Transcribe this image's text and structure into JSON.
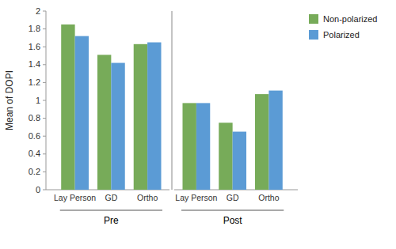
{
  "chart_data": {
    "type": "bar",
    "categories": [
      "Lay Person",
      "GD",
      "Ortho",
      "Lay Person",
      "GD",
      "Ortho"
    ],
    "series": [
      {
        "name": "Non-polarized",
        "color": "#77ab59",
        "values": [
          1.85,
          1.51,
          1.63,
          0.97,
          0.75,
          1.07
        ]
      },
      {
        "name": "Polarized",
        "color": "#5b9bd5",
        "values": [
          1.72,
          1.42,
          1.65,
          0.97,
          0.65,
          1.11
        ]
      }
    ],
    "ylabel": "Mean of DOPI",
    "ylim": [
      0,
      2.0
    ],
    "yticks": [
      0,
      0.2,
      0.4,
      0.6,
      0.8,
      1.0,
      1.2,
      1.4,
      1.6,
      1.8,
      2.0
    ],
    "annotations": [
      "Pre",
      "Post"
    ],
    "legend": "upper right",
    "grid": false
  }
}
